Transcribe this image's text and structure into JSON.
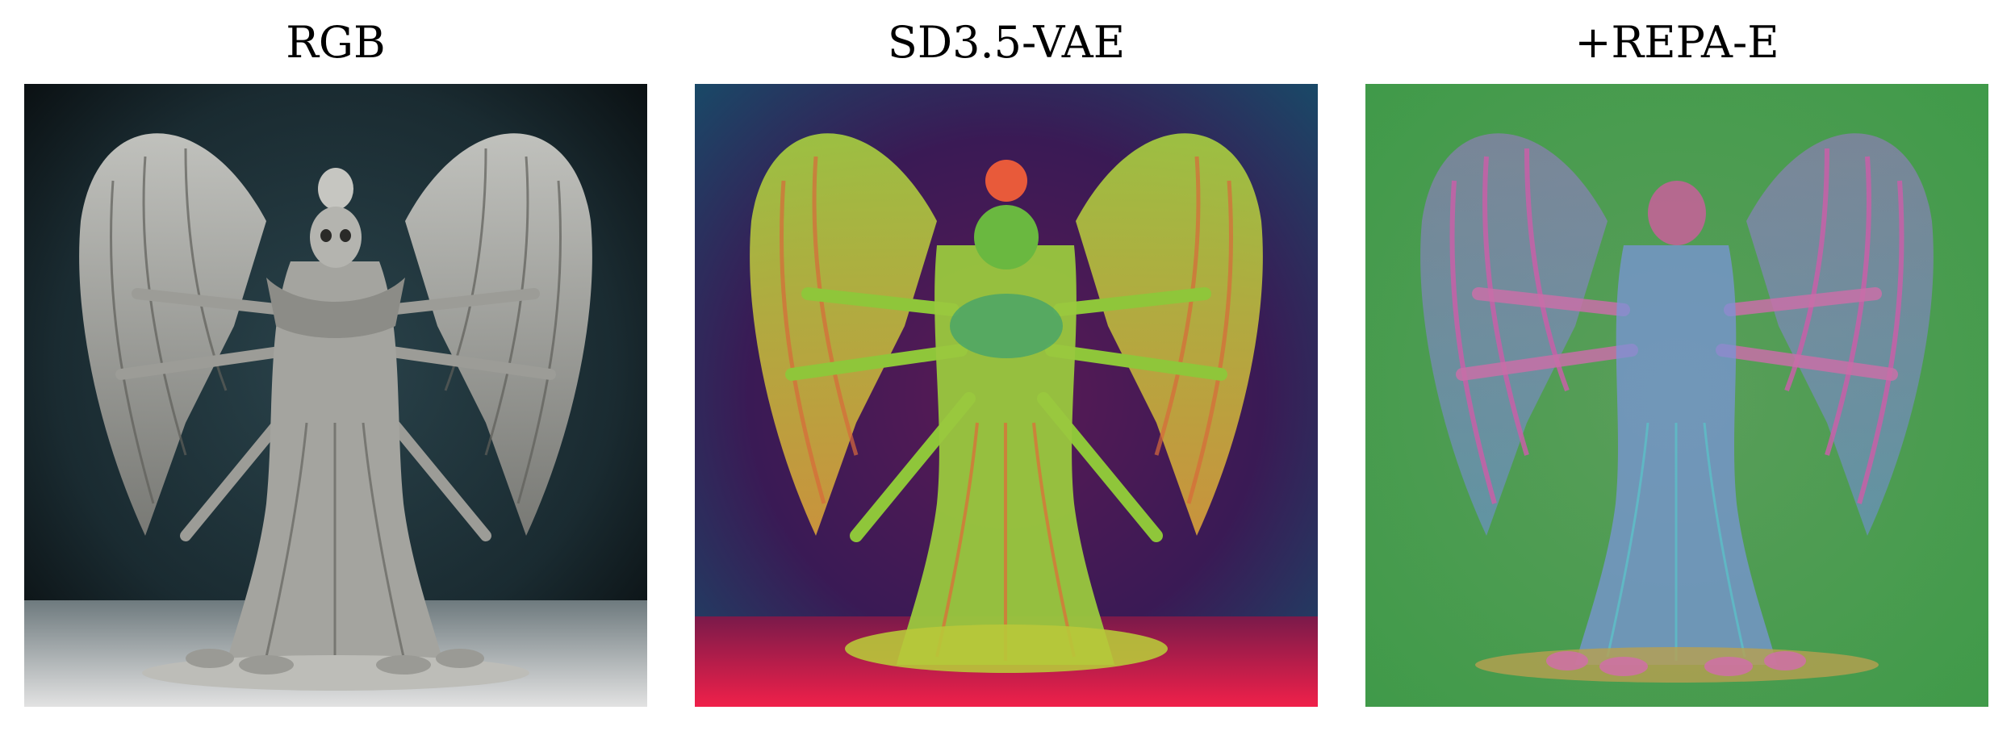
{
  "panels": [
    {
      "title": "RGB",
      "picture": "rgb-photo"
    },
    {
      "title": "SD3.5-VAE",
      "picture": "sd35-vae-latent-visualization"
    },
    {
      "title": "+REPA-E",
      "picture": "repa-e-latent-visualization"
    }
  ],
  "colors": {
    "rgb_bg_top": "#1d2f36",
    "rgb_bg_edge": "#050708",
    "rgb_floor": "#d8d8d8",
    "rgb_figure": "#a9a9a4",
    "vae_bg_top": "#1a4a66",
    "vae_bg_center": "#4a1648",
    "vae_floor": "#e0204a",
    "vae_figure": "#8fc63a",
    "vae_figure_accent": "#d86a3a",
    "repa_bg": "#4fae58",
    "repa_figure": "#6f8fd8",
    "repa_accent": "#c860a8"
  }
}
